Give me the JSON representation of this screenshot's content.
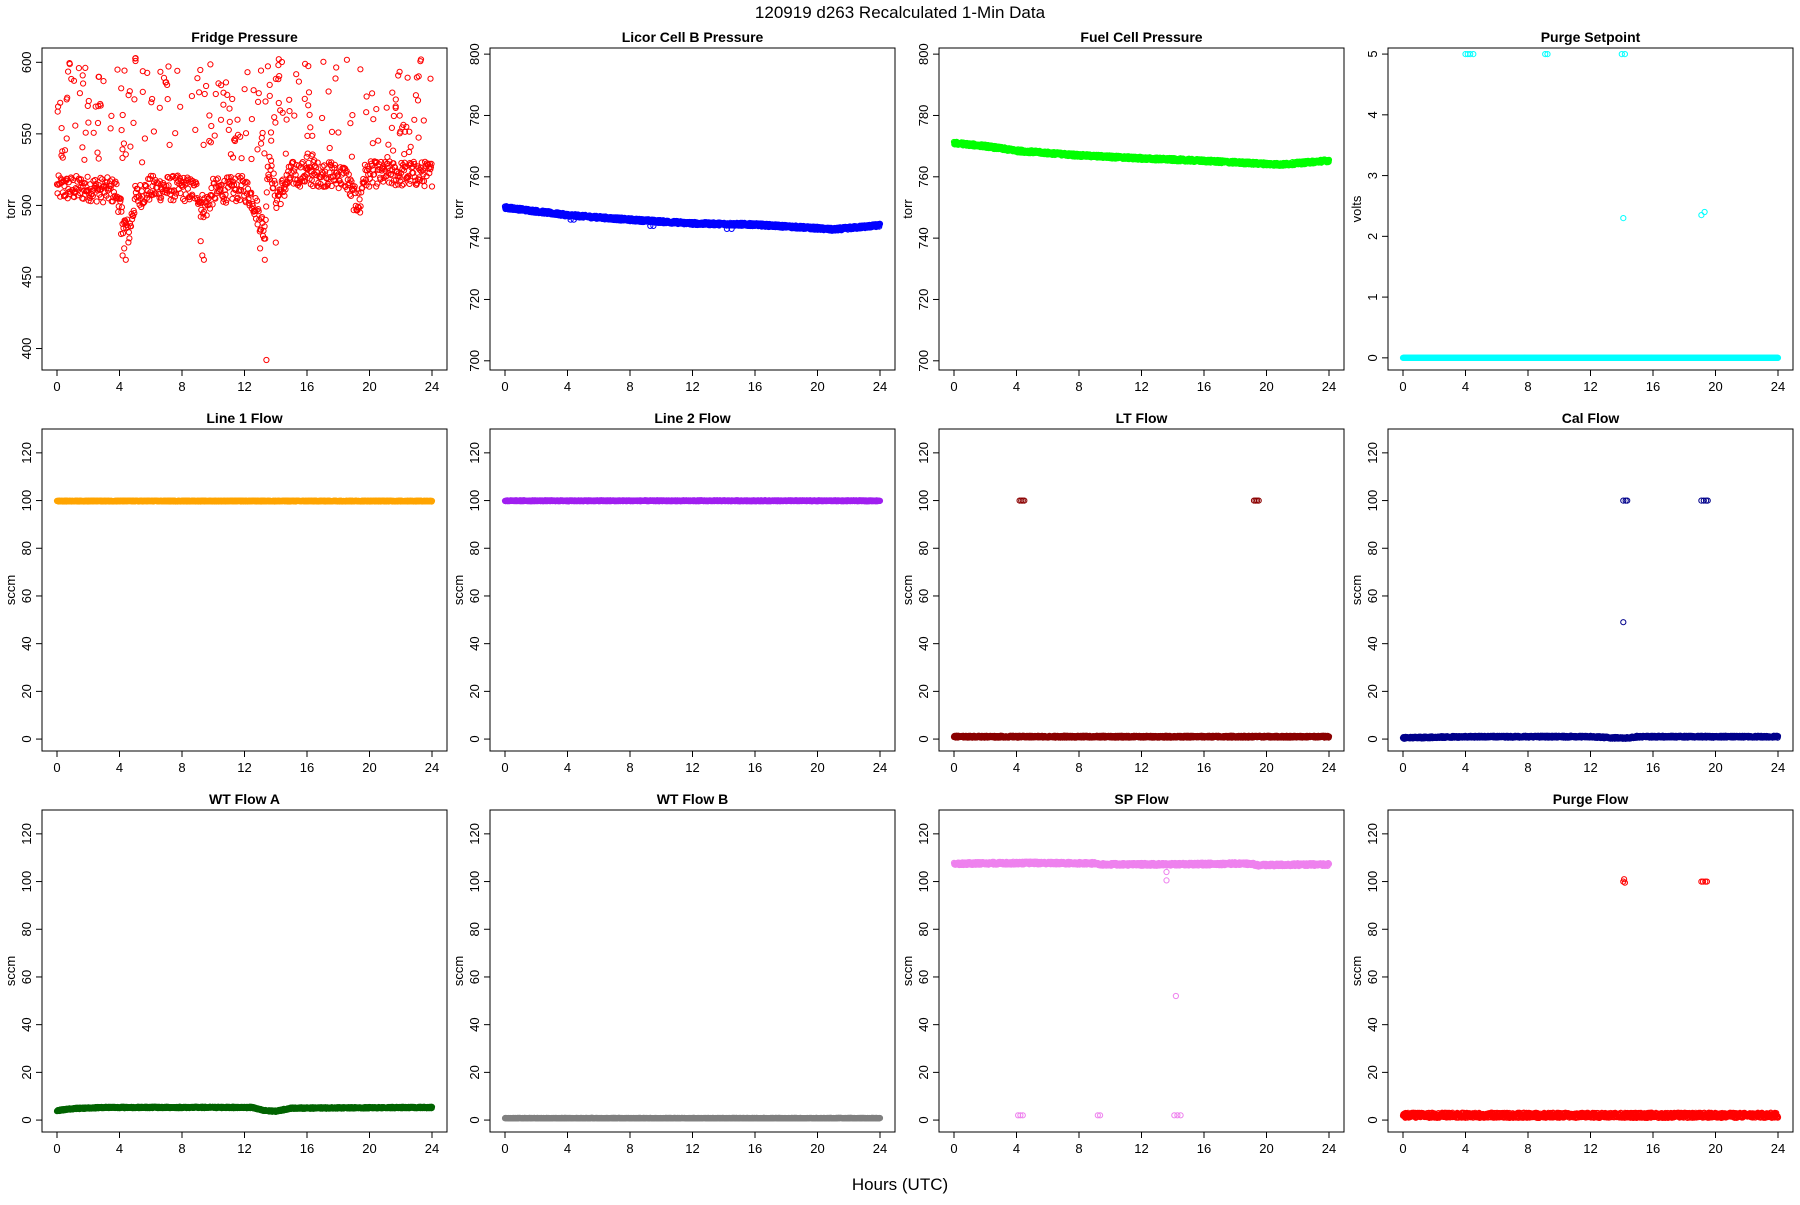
{
  "page_title": "120919    d263    Recalculated 1-Min Data",
  "x_axis_label": "Hours (UTC)",
  "chart_data": [
    {
      "type": "scatter",
      "title": "Fridge Pressure",
      "ylabel": "torr",
      "xlim": [
        0,
        24
      ],
      "ylim": [
        385,
        610
      ],
      "xticks": [
        0,
        4,
        8,
        12,
        16,
        20,
        24
      ],
      "yticks": [
        400,
        450,
        500,
        550,
        600
      ],
      "color": "#ff0000",
      "series": [
        {
          "kind": "band",
          "points": [
            [
              0,
              512
            ],
            [
              2,
              512
            ],
            [
              3.8,
              510
            ],
            [
              4.2,
              490
            ],
            [
              4.6,
              480
            ],
            [
              5,
              505
            ],
            [
              6,
              512
            ],
            [
              8,
              512
            ],
            [
              9,
              510
            ],
            [
              9.2,
              500
            ],
            [
              9.6,
              500
            ],
            [
              10,
              510
            ],
            [
              12,
              512
            ],
            [
              12.5,
              505
            ],
            [
              13,
              490
            ],
            [
              13.3,
              480
            ],
            [
              13.5,
              530
            ],
            [
              13.8,
              520
            ],
            [
              14,
              505
            ],
            [
              14.5,
              512
            ],
            [
              15,
              522
            ],
            [
              17,
              522
            ],
            [
              18.5,
              520
            ],
            [
              19,
              505
            ],
            [
              19.4,
              500
            ],
            [
              19.6,
              520
            ],
            [
              20,
              522
            ],
            [
              24,
              522
            ]
          ],
          "spread": 9,
          "n": 700
        },
        {
          "kind": "scatter_range",
          "x": [
            0,
            24
          ],
          "y": [
            530,
            605
          ],
          "n": 220
        },
        {
          "kind": "points",
          "points": [
            [
              4.2,
              465
            ],
            [
              4.3,
              470
            ],
            [
              4.4,
              462
            ],
            [
              9.3,
              465
            ],
            [
              9.4,
              462
            ],
            [
              13.0,
              470
            ],
            [
              13.3,
              462
            ],
            [
              13.4,
              392
            ],
            [
              14,
              474
            ],
            [
              4.1,
              480
            ],
            [
              9.2,
              475
            ]
          ]
        }
      ]
    },
    {
      "type": "scatter",
      "title": "Licor Cell B Pressure",
      "ylabel": "torr",
      "xlim": [
        0,
        24
      ],
      "ylim": [
        697,
        802
      ],
      "xticks": [
        0,
        4,
        8,
        12,
        16,
        20,
        24
      ],
      "yticks": [
        700,
        720,
        740,
        760,
        780,
        800
      ],
      "color": "#0000ff",
      "series": [
        {
          "kind": "line",
          "points": [
            [
              0,
              750
            ],
            [
              4,
              747.5
            ],
            [
              8,
              746
            ],
            [
              12,
              744.8
            ],
            [
              16,
              744.4
            ],
            [
              20,
              743.2
            ],
            [
              21,
              742.8
            ],
            [
              24,
              744.2
            ]
          ],
          "spread": 0.5,
          "n": 1440
        },
        {
          "kind": "points",
          "points": [
            [
              4.2,
              746
            ],
            [
              4.4,
              746
            ],
            [
              9.3,
              744
            ],
            [
              9.5,
              744
            ],
            [
              14.2,
              743
            ],
            [
              14.5,
              743
            ]
          ]
        }
      ]
    },
    {
      "type": "scatter",
      "title": "Fuel Cell Pressure",
      "ylabel": "torr",
      "xlim": [
        0,
        24
      ],
      "ylim": [
        697,
        802
      ],
      "xticks": [
        0,
        4,
        8,
        12,
        16,
        20,
        24
      ],
      "yticks": [
        700,
        720,
        740,
        760,
        780,
        800
      ],
      "color": "#00ff00",
      "series": [
        {
          "kind": "line",
          "points": [
            [
              0,
              771
            ],
            [
              2,
              770
            ],
            [
              4,
              768.5
            ],
            [
              8,
              767
            ],
            [
              12,
              766
            ],
            [
              16,
              765.2
            ],
            [
              20,
              764.2
            ],
            [
              21,
              764
            ],
            [
              24,
              765.3
            ]
          ],
          "spread": 0.5,
          "n": 1440
        }
      ]
    },
    {
      "type": "scatter",
      "title": "Purge Setpoint",
      "ylabel": "volts",
      "xlim": [
        0,
        24
      ],
      "ylim": [
        -0.2,
        5.1
      ],
      "xticks": [
        0,
        4,
        8,
        12,
        16,
        20,
        24
      ],
      "yticks": [
        0,
        1,
        2,
        3,
        4,
        5
      ],
      "color": "#00ffff",
      "series": [
        {
          "kind": "line",
          "points": [
            [
              0,
              0
            ],
            [
              24,
              0
            ]
          ],
          "spread": 0,
          "n": 1440
        },
        {
          "kind": "points",
          "points": [
            [
              4,
              5
            ],
            [
              4.15,
              5
            ],
            [
              4.3,
              5
            ],
            [
              4.5,
              5
            ],
            [
              9.1,
              5
            ],
            [
              9.25,
              5
            ],
            [
              14.0,
              5
            ],
            [
              14.2,
              5
            ],
            [
              14.1,
              2.3
            ],
            [
              19.1,
              2.35
            ],
            [
              19.3,
              2.4
            ]
          ]
        }
      ]
    },
    {
      "type": "scatter",
      "title": "Line 1 Flow",
      "ylabel": "sccm",
      "xlim": [
        0,
        24
      ],
      "ylim": [
        -5,
        130
      ],
      "xticks": [
        0,
        4,
        8,
        12,
        16,
        20,
        24
      ],
      "yticks": [
        0,
        20,
        40,
        60,
        80,
        100,
        120
      ],
      "color": "#ffa500",
      "series": [
        {
          "kind": "line",
          "points": [
            [
              0,
              99.8
            ],
            [
              24,
              99.8
            ]
          ],
          "spread": 0.2,
          "n": 1440
        }
      ]
    },
    {
      "type": "scatter",
      "title": "Line 2 Flow",
      "ylabel": "sccm",
      "xlim": [
        0,
        24
      ],
      "ylim": [
        -5,
        130
      ],
      "xticks": [
        0,
        4,
        8,
        12,
        16,
        20,
        24
      ],
      "yticks": [
        0,
        20,
        40,
        60,
        80,
        100,
        120
      ],
      "color": "#a020f0",
      "series": [
        {
          "kind": "line",
          "points": [
            [
              0,
              99.9
            ],
            [
              24,
              99.9
            ]
          ],
          "spread": 0.2,
          "n": 1440
        }
      ]
    },
    {
      "type": "scatter",
      "title": "LT Flow",
      "ylabel": "sccm",
      "xlim": [
        0,
        24
      ],
      "ylim": [
        -5,
        130
      ],
      "xticks": [
        0,
        4,
        8,
        12,
        16,
        20,
        24
      ],
      "yticks": [
        0,
        20,
        40,
        60,
        80,
        100,
        120
      ],
      "color": "#8b0000",
      "series": [
        {
          "kind": "line",
          "points": [
            [
              0,
              1
            ],
            [
              24,
              1
            ]
          ],
          "spread": 0.4,
          "n": 1440
        },
        {
          "kind": "points",
          "points": [
            [
              4.2,
              100
            ],
            [
              4.3,
              100
            ],
            [
              4.4,
              100
            ],
            [
              4.5,
              100
            ],
            [
              19.2,
              100
            ],
            [
              19.3,
              100
            ],
            [
              19.4,
              100
            ],
            [
              19.5,
              100
            ]
          ]
        }
      ]
    },
    {
      "type": "scatter",
      "title": "Cal Flow",
      "ylabel": "sccm",
      "xlim": [
        0,
        24
      ],
      "ylim": [
        -5,
        130
      ],
      "xticks": [
        0,
        4,
        8,
        12,
        16,
        20,
        24
      ],
      "yticks": [
        0,
        20,
        40,
        60,
        80,
        100,
        120
      ],
      "color": "#00008b",
      "series": [
        {
          "kind": "line",
          "points": [
            [
              0,
              0.5
            ],
            [
              4,
              1
            ],
            [
              12,
              1
            ],
            [
              13.5,
              0.5
            ],
            [
              14.5,
              0.5
            ],
            [
              15,
              1
            ],
            [
              24,
              1
            ]
          ],
          "spread": 0.4,
          "n": 1440
        },
        {
          "kind": "points",
          "points": [
            [
              14.1,
              100
            ],
            [
              14.25,
              100
            ],
            [
              14.35,
              100
            ],
            [
              19.1,
              100
            ],
            [
              19.25,
              100
            ],
            [
              19.4,
              100
            ],
            [
              19.5,
              100
            ],
            [
              14.1,
              49
            ]
          ]
        }
      ]
    },
    {
      "type": "scatter",
      "title": "WT Flow A",
      "ylabel": "sccm",
      "xlim": [
        0,
        24
      ],
      "ylim": [
        -5,
        130
      ],
      "xticks": [
        0,
        4,
        8,
        12,
        16,
        20,
        24
      ],
      "yticks": [
        0,
        20,
        40,
        60,
        80,
        100,
        120
      ],
      "color": "#006400",
      "series": [
        {
          "kind": "line",
          "points": [
            [
              0,
              4
            ],
            [
              1,
              4.8
            ],
            [
              3,
              5.3
            ],
            [
              12.5,
              5.3
            ],
            [
              13.2,
              4
            ],
            [
              14,
              3.7
            ],
            [
              15,
              5
            ],
            [
              24,
              5.3
            ]
          ],
          "spread": 0.3,
          "n": 1440
        }
      ]
    },
    {
      "type": "scatter",
      "title": "WT Flow B",
      "ylabel": "sccm",
      "xlim": [
        0,
        24
      ],
      "ylim": [
        -5,
        130
      ],
      "xticks": [
        0,
        4,
        8,
        12,
        16,
        20,
        24
      ],
      "yticks": [
        0,
        20,
        40,
        60,
        80,
        100,
        120
      ],
      "color": "#808080",
      "series": [
        {
          "kind": "line",
          "points": [
            [
              0,
              0.8
            ],
            [
              24,
              0.8
            ]
          ],
          "spread": 0.1,
          "n": 1440
        }
      ]
    },
    {
      "type": "scatter",
      "title": "SP Flow",
      "ylabel": "sccm",
      "xlim": [
        0,
        24
      ],
      "ylim": [
        -5,
        130
      ],
      "xticks": [
        0,
        4,
        8,
        12,
        16,
        20,
        24
      ],
      "yticks": [
        0,
        20,
        40,
        60,
        80,
        100,
        120
      ],
      "color": "#ee82ee",
      "series": [
        {
          "kind": "line",
          "points": [
            [
              0,
              107.5
            ],
            [
              5,
              107.8
            ],
            [
              9,
              107.6
            ],
            [
              9.5,
              107.2
            ],
            [
              14,
              107.2
            ],
            [
              18,
              107.5
            ],
            [
              19,
              107.5
            ],
            [
              19.5,
              106.8
            ],
            [
              21,
              107
            ],
            [
              24,
              107.2
            ]
          ],
          "spread": 0.6,
          "n": 1440
        },
        {
          "kind": "points",
          "points": [
            [
              4.1,
              2
            ],
            [
              4.25,
              2
            ],
            [
              4.4,
              2
            ],
            [
              9.2,
              2
            ],
            [
              9.35,
              2
            ],
            [
              14.1,
              2
            ],
            [
              14.3,
              2
            ],
            [
              14.5,
              2
            ],
            [
              13.6,
              104
            ],
            [
              13.6,
              100.5
            ],
            [
              14.2,
              52
            ]
          ]
        }
      ]
    },
    {
      "type": "scatter",
      "title": "Purge Flow",
      "ylabel": "sccm",
      "xlim": [
        0,
        24
      ],
      "ylim": [
        -5,
        130
      ],
      "xticks": [
        0,
        4,
        8,
        12,
        16,
        20,
        24
      ],
      "yticks": [
        0,
        20,
        40,
        60,
        80,
        100,
        120
      ],
      "color": "#ff0000",
      "series": [
        {
          "kind": "line",
          "points": [
            [
              0,
              2
            ],
            [
              24,
              2
            ]
          ],
          "spread": 1.1,
          "n": 1440
        },
        {
          "kind": "points",
          "points": [
            [
              14.1,
              100
            ],
            [
              14.15,
              101
            ],
            [
              14.2,
              99.5
            ],
            [
              19.1,
              100
            ],
            [
              19.2,
              100
            ],
            [
              19.35,
              100
            ],
            [
              19.45,
              100
            ]
          ]
        }
      ]
    }
  ]
}
